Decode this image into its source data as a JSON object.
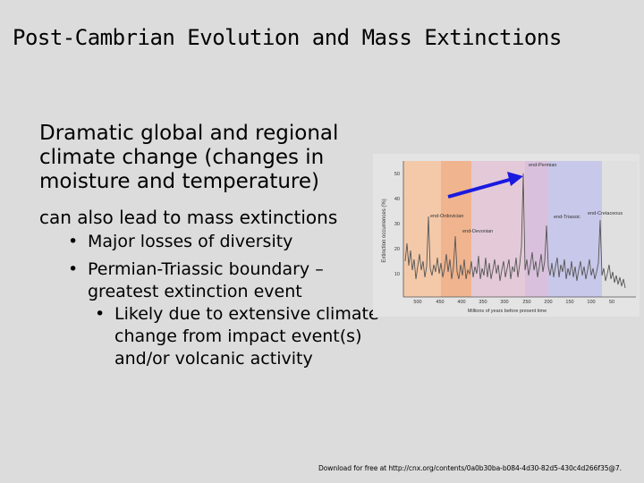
{
  "title": "Post-Cambrian Evolution and Mass Extinctions",
  "body": {
    "main": "Dramatic global and regional climate change (changes in moisture and temperature)",
    "sub": "can also lead to mass extinctions",
    "bullets": [
      "Major losses of diversity",
      "Permian-Triassic boundary – greatest extinction event"
    ],
    "sub_bullets": [
      "Likely due to extensive climate change from impact event(s) and/or volcanic activity"
    ]
  },
  "figure": {
    "ylabel": "Extinction occurrences (%)",
    "xlabel": "Millions of years before present time",
    "y_ticks": [
      "50",
      "40",
      "30",
      "20",
      "10"
    ],
    "x_ticks": [
      "500",
      "450",
      "400",
      "350",
      "300",
      "250",
      "200",
      "150",
      "100",
      "50"
    ],
    "events": {
      "end_ordovician": "end-Ordovician",
      "end_devonian": "end-Devonian",
      "end_permian": "end-Permian",
      "end_triassic": "end-Triassic",
      "end_cretaceous": "end-Cretaceous"
    },
    "arrow_color": "#1a1adf",
    "band_colors": [
      "#f3c9a9",
      "#f0b48e",
      "#e4cad9",
      "#d9c1dd",
      "#c8c8ea"
    ]
  },
  "footer": "Download for free at http://cnx.org/contents/0a0b30ba-b084-4d30-82d5-430c4d266f35@7."
}
